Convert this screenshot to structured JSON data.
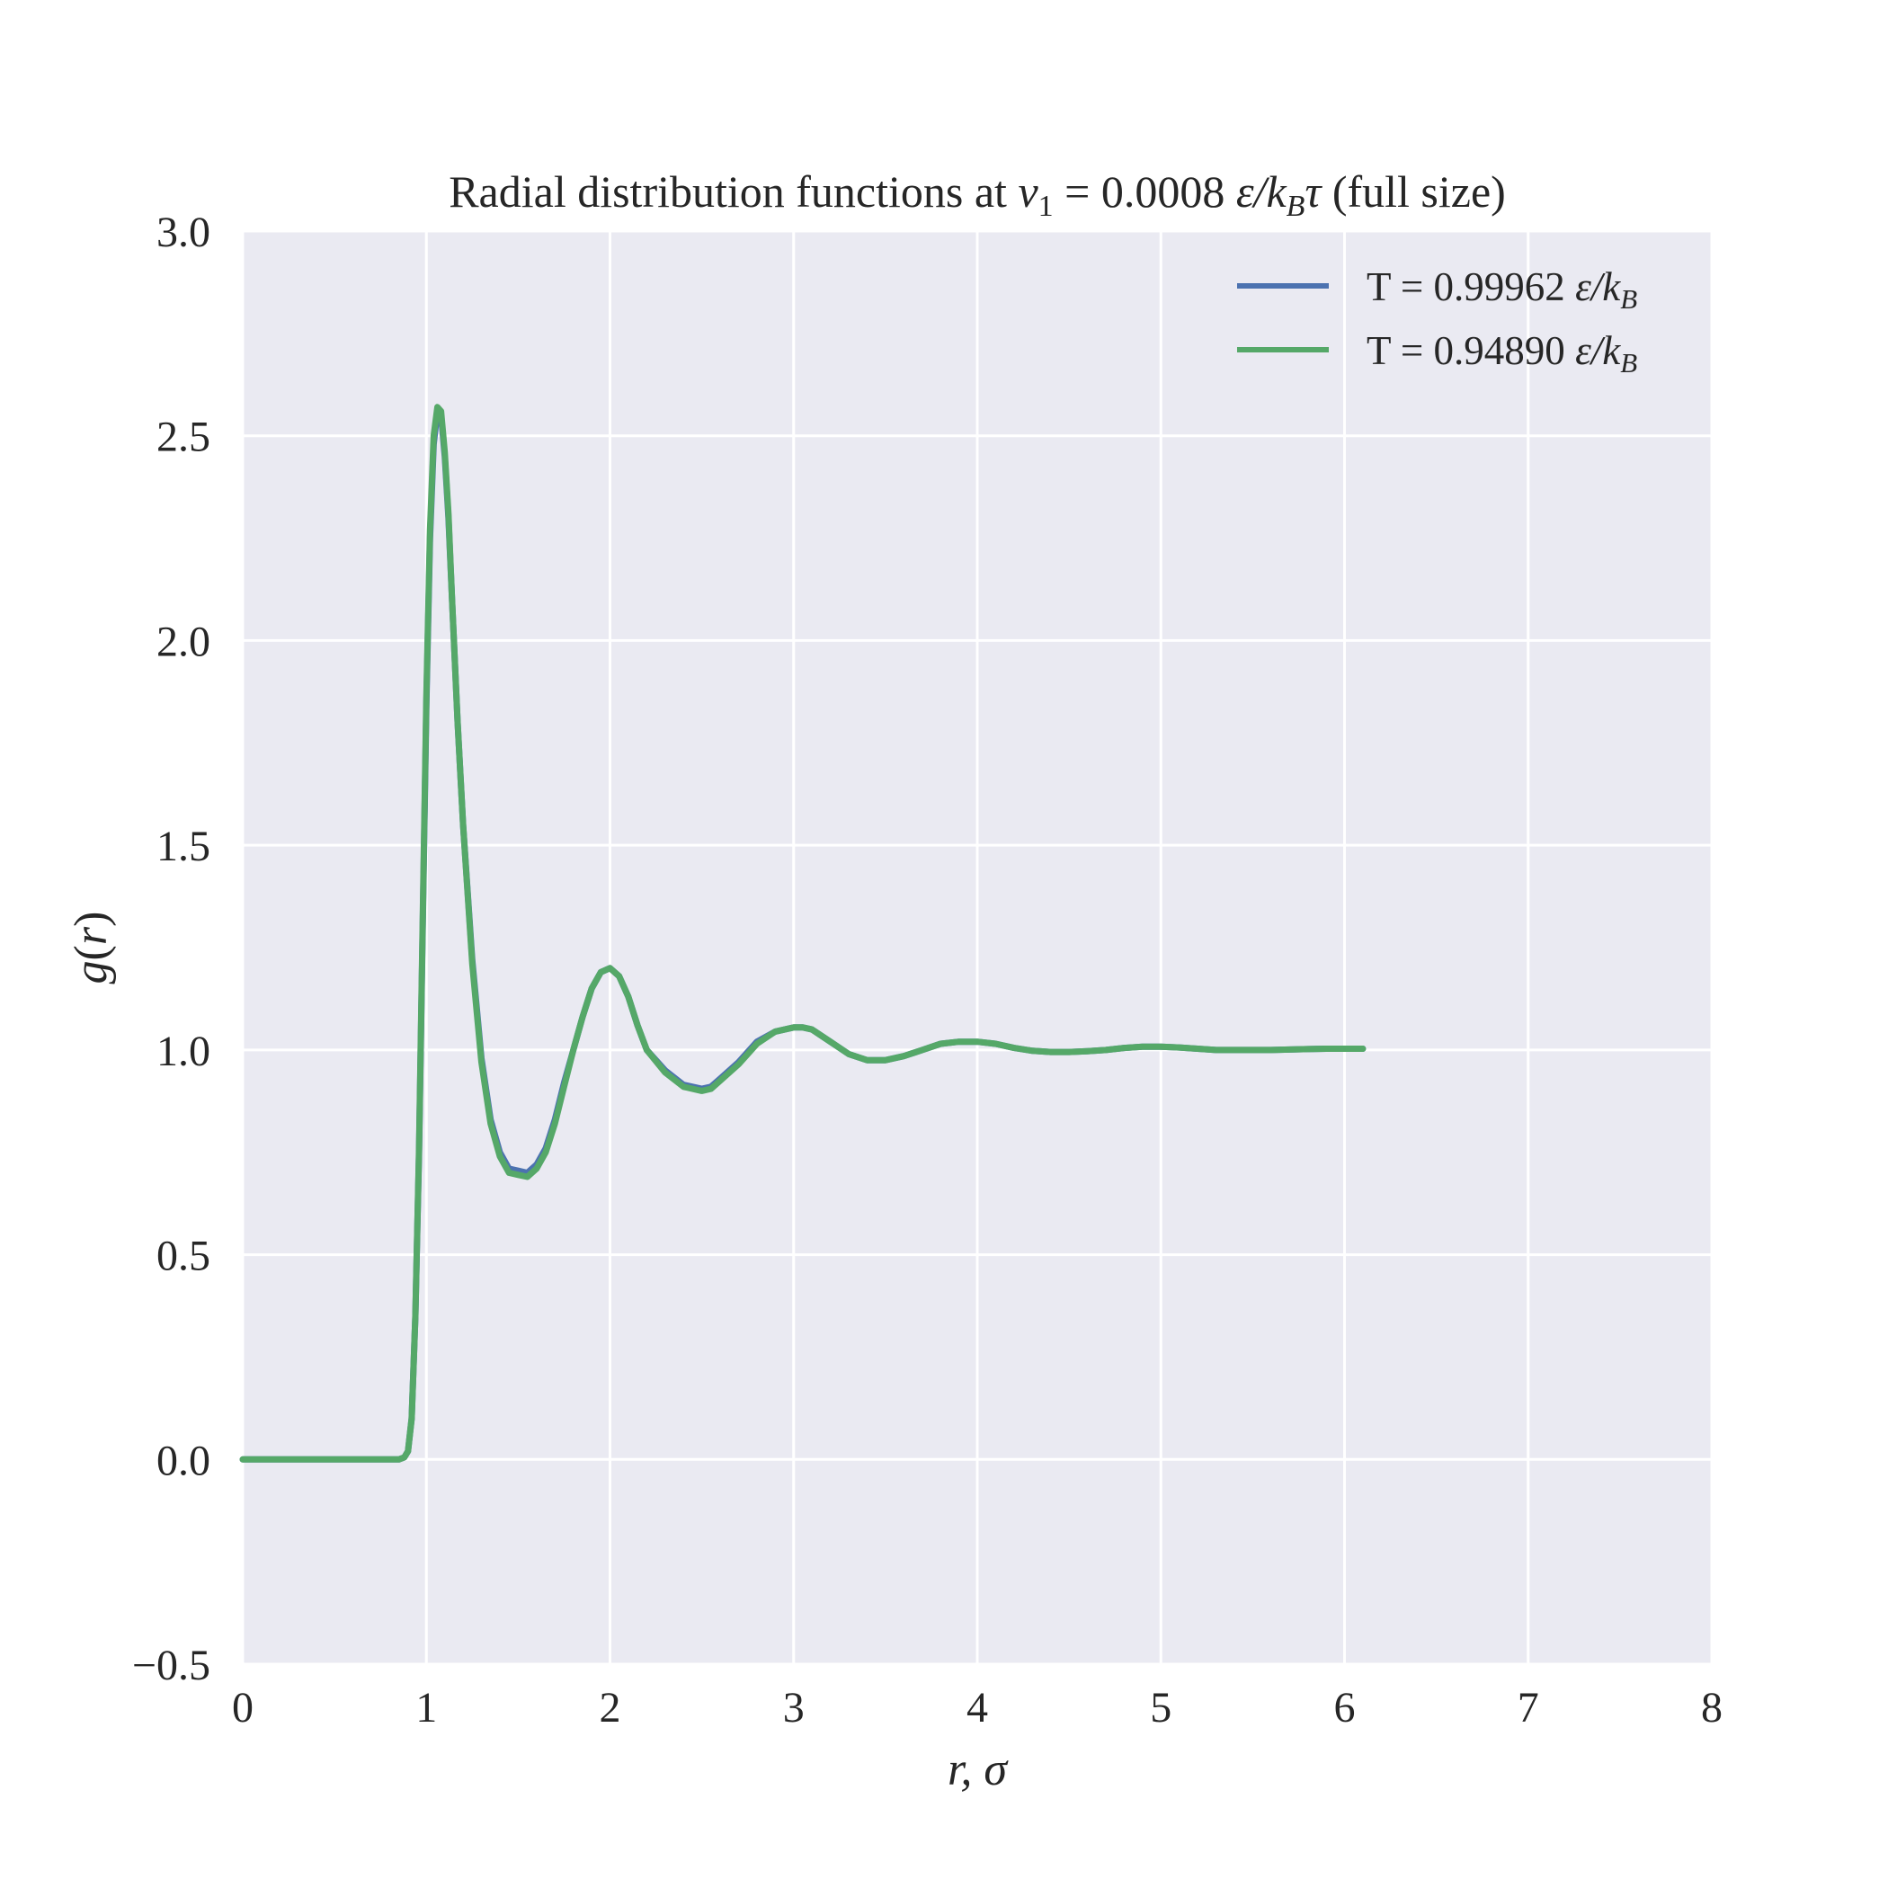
{
  "chart_data": {
    "type": "line",
    "title_parts": {
      "lead": "Radial distribution functions at ",
      "var": "v",
      "var_sub": "1",
      "eq": " = ",
      "value": "0.0008 ",
      "unit_eps": "ε/k",
      "unit_sub": "B",
      "unit_tau": "τ",
      "tail": " (full size)"
    },
    "xlabel": "r, σ",
    "ylabel_parts": {
      "g": "g",
      "open": "(",
      "r": "r",
      "close": ")"
    },
    "xlim": [
      0,
      8
    ],
    "ylim": [
      -0.5,
      3.0
    ],
    "xticks": [
      0,
      1,
      2,
      3,
      4,
      5,
      6,
      7,
      8
    ],
    "xtick_labels": [
      "0",
      "1",
      "2",
      "3",
      "4",
      "5",
      "6",
      "7",
      "8"
    ],
    "yticks": [
      -0.5,
      0.0,
      0.5,
      1.0,
      1.5,
      2.0,
      2.5,
      3.0
    ],
    "ytick_labels": [
      "−0.5",
      "0.0",
      "0.5",
      "1.0",
      "1.5",
      "2.0",
      "2.5",
      "3.0"
    ],
    "grid": true,
    "legend_position": "top-right",
    "background_color": "#eaeaf2",
    "series": [
      {
        "name_prefix": "T = 0.99962 ",
        "name_unit": "ε/k",
        "name_sub": "B",
        "color": "#4c72b0",
        "x": [
          0,
          0.5,
          0.85,
          0.88,
          0.9,
          0.92,
          0.94,
          0.96,
          0.98,
          1.0,
          1.02,
          1.04,
          1.06,
          1.08,
          1.1,
          1.12,
          1.14,
          1.17,
          1.2,
          1.25,
          1.3,
          1.35,
          1.4,
          1.45,
          1.5,
          1.55,
          1.6,
          1.65,
          1.7,
          1.75,
          1.8,
          1.85,
          1.9,
          1.95,
          2.0,
          2.05,
          2.1,
          2.15,
          2.2,
          2.3,
          2.4,
          2.5,
          2.55,
          2.6,
          2.7,
          2.8,
          2.9,
          3.0,
          3.05,
          3.1,
          3.2,
          3.3,
          3.4,
          3.5,
          3.6,
          3.7,
          3.8,
          3.9,
          4.0,
          4.1,
          4.2,
          4.3,
          4.4,
          4.5,
          4.6,
          4.7,
          4.8,
          4.9,
          5.0,
          5.1,
          5.2,
          5.3,
          5.4,
          5.5,
          5.6,
          5.7,
          5.8,
          5.9,
          6.0,
          6.1
        ],
        "y": [
          0.0,
          0.0,
          0.0,
          0.005,
          0.02,
          0.1,
          0.35,
          0.75,
          1.3,
          1.85,
          2.25,
          2.48,
          2.56,
          2.55,
          2.45,
          2.3,
          2.1,
          1.8,
          1.55,
          1.22,
          0.98,
          0.83,
          0.75,
          0.71,
          0.705,
          0.7,
          0.72,
          0.76,
          0.83,
          0.92,
          1.0,
          1.08,
          1.15,
          1.19,
          1.2,
          1.18,
          1.13,
          1.06,
          1.0,
          0.95,
          0.915,
          0.905,
          0.91,
          0.93,
          0.97,
          1.02,
          1.045,
          1.055,
          1.055,
          1.05,
          1.02,
          0.99,
          0.975,
          0.975,
          0.985,
          1.0,
          1.015,
          1.02,
          1.02,
          1.015,
          1.005,
          0.998,
          0.995,
          0.995,
          0.997,
          1.0,
          1.005,
          1.008,
          1.008,
          1.006,
          1.003,
          1.0,
          1.0,
          1.0,
          1.0,
          1.001,
          1.002,
          1.003,
          1.003,
          1.003
        ]
      },
      {
        "name_prefix": "T = 0.94890 ",
        "name_unit": "ε/k",
        "name_sub": "B",
        "color": "#55a868",
        "x": [
          0,
          0.5,
          0.85,
          0.88,
          0.9,
          0.92,
          0.94,
          0.96,
          0.98,
          1.0,
          1.02,
          1.04,
          1.06,
          1.08,
          1.1,
          1.12,
          1.14,
          1.17,
          1.2,
          1.25,
          1.3,
          1.35,
          1.4,
          1.45,
          1.5,
          1.55,
          1.6,
          1.65,
          1.7,
          1.75,
          1.8,
          1.85,
          1.9,
          1.95,
          2.0,
          2.05,
          2.1,
          2.15,
          2.2,
          2.3,
          2.4,
          2.5,
          2.55,
          2.6,
          2.7,
          2.8,
          2.9,
          3.0,
          3.05,
          3.1,
          3.2,
          3.3,
          3.4,
          3.5,
          3.6,
          3.7,
          3.8,
          3.9,
          4.0,
          4.1,
          4.2,
          4.3,
          4.4,
          4.5,
          4.6,
          4.7,
          4.8,
          4.9,
          5.0,
          5.1,
          5.2,
          5.3,
          5.4,
          5.5,
          5.6,
          5.7,
          5.8,
          5.9,
          6.0,
          6.1
        ],
        "y": [
          0.0,
          0.0,
          0.0,
          0.005,
          0.02,
          0.1,
          0.35,
          0.76,
          1.32,
          1.87,
          2.27,
          2.5,
          2.57,
          2.56,
          2.46,
          2.31,
          2.1,
          1.8,
          1.55,
          1.21,
          0.97,
          0.82,
          0.74,
          0.7,
          0.695,
          0.69,
          0.71,
          0.75,
          0.82,
          0.91,
          1.0,
          1.08,
          1.15,
          1.19,
          1.2,
          1.18,
          1.13,
          1.06,
          1.0,
          0.945,
          0.91,
          0.9,
          0.905,
          0.925,
          0.965,
          1.015,
          1.045,
          1.055,
          1.055,
          1.05,
          1.02,
          0.99,
          0.975,
          0.975,
          0.985,
          1.0,
          1.015,
          1.02,
          1.02,
          1.015,
          1.005,
          0.998,
          0.995,
          0.995,
          0.997,
          1.0,
          1.005,
          1.008,
          1.008,
          1.006,
          1.003,
          1.0,
          1.0,
          1.0,
          1.0,
          1.001,
          1.002,
          1.003,
          1.003,
          1.003
        ]
      }
    ]
  }
}
